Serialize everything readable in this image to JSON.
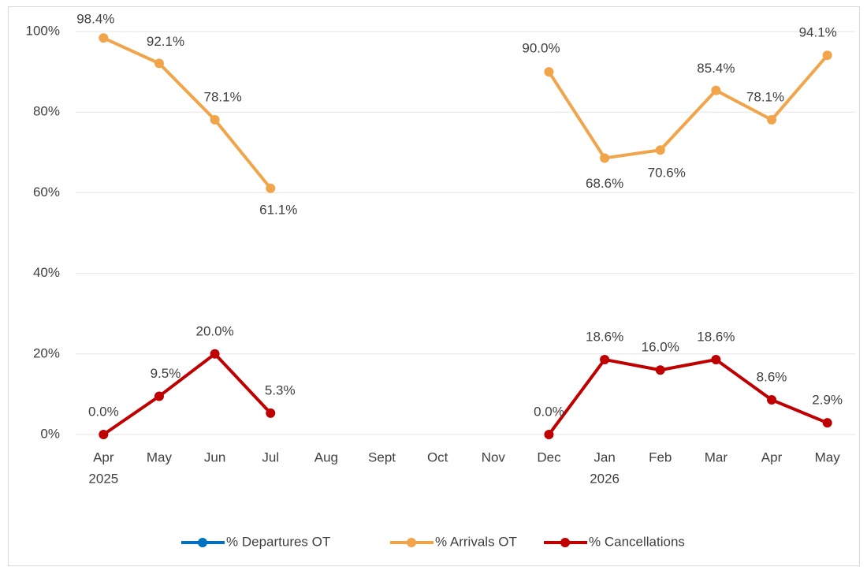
{
  "chart_data": {
    "type": "line",
    "categories": [
      "Apr",
      "May",
      "Jun",
      "Jul",
      "Aug",
      "Sept",
      "Oct",
      "Nov",
      "Dec",
      "Jan",
      "Feb",
      "Mar",
      "Apr",
      "May"
    ],
    "category_years": [
      "2025",
      null,
      null,
      null,
      null,
      null,
      null,
      null,
      null,
      "2026",
      null,
      null,
      null,
      null
    ],
    "series": [
      {
        "name": "% Departures OT",
        "color": "#0070c0",
        "values": [
          null,
          null,
          null,
          null,
          null,
          null,
          null,
          null,
          null,
          null,
          null,
          null,
          null,
          null
        ]
      },
      {
        "name": "% Arrivals OT",
        "color": "#f2a44a",
        "values": [
          98.4,
          92.1,
          78.1,
          61.1,
          null,
          null,
          null,
          null,
          90.0,
          68.6,
          70.6,
          85.4,
          78.1,
          94.1
        ],
        "value_labels": [
          "98.4%",
          "92.1%",
          "78.1%",
          "61.1%",
          null,
          null,
          null,
          null,
          "90.0%",
          "68.6%",
          "70.6%",
          "85.4%",
          "78.1%",
          "94.1%"
        ]
      },
      {
        "name": "% Cancellations",
        "color": "#c00000",
        "values": [
          0.0,
          9.5,
          20.0,
          5.3,
          null,
          null,
          null,
          null,
          0.0,
          18.6,
          16.0,
          18.6,
          8.6,
          2.9
        ],
        "value_labels": [
          "0.0%",
          "9.5%",
          "20.0%",
          "5.3%",
          null,
          null,
          null,
          null,
          "0.0%",
          "18.6%",
          "16.0%",
          "18.6%",
          "8.6%",
          "2.9%"
        ]
      }
    ],
    "ylim": [
      0,
      100
    ],
    "yticks": [
      {
        "value": 0,
        "label": "0%"
      },
      {
        "value": 20,
        "label": "20%"
      },
      {
        "value": 40,
        "label": "40%"
      },
      {
        "value": 60,
        "label": "60%"
      },
      {
        "value": 80,
        "label": "80%"
      },
      {
        "value": 100,
        "label": "100%"
      }
    ],
    "grid": true,
    "legend": "bottom"
  }
}
